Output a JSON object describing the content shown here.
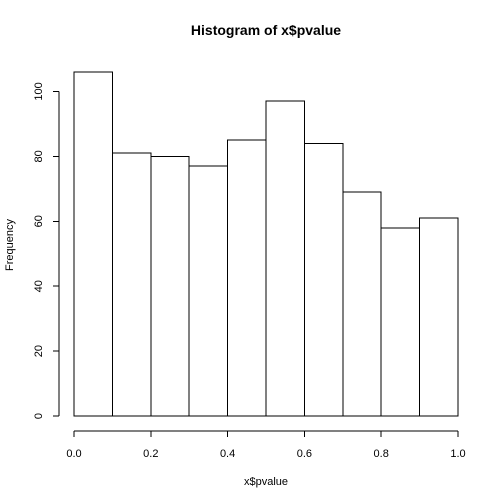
{
  "chart_data": {
    "type": "bar",
    "title": "Histogram of x$pvalue",
    "xlabel": "x$pvalue",
    "ylabel": "Frequency",
    "bins": [
      {
        "start": 0.0,
        "end": 0.1,
        "count": 106
      },
      {
        "start": 0.1,
        "end": 0.2,
        "count": 81
      },
      {
        "start": 0.2,
        "end": 0.3,
        "count": 80
      },
      {
        "start": 0.3,
        "end": 0.4,
        "count": 77
      },
      {
        "start": 0.4,
        "end": 0.5,
        "count": 85
      },
      {
        "start": 0.5,
        "end": 0.6,
        "count": 97
      },
      {
        "start": 0.6,
        "end": 0.7,
        "count": 84
      },
      {
        "start": 0.7,
        "end": 0.8,
        "count": 69
      },
      {
        "start": 0.8,
        "end": 0.9,
        "count": 58
      },
      {
        "start": 0.9,
        "end": 1.0,
        "count": 61
      }
    ],
    "xlim": [
      0.0,
      1.0
    ],
    "ylim": [
      0,
      106
    ],
    "x_ticks": [
      "0.0",
      "0.2",
      "0.4",
      "0.6",
      "0.8",
      "1.0"
    ],
    "y_ticks": [
      "0",
      "20",
      "40",
      "60",
      "80",
      "100"
    ],
    "grid": false,
    "bar_fill": "#ffffff",
    "bar_stroke": "#000000"
  }
}
